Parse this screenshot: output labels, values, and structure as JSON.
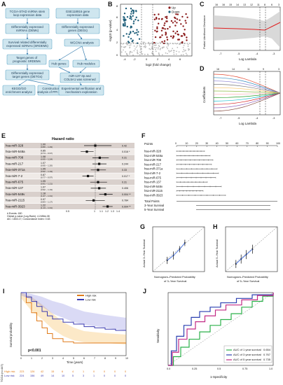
{
  "panels": {
    "A": {
      "label": "A",
      "boxes": [
        [
          "TCGA-STAD miRNA stem",
          "loop expression data"
        ],
        [
          "GSE118916 gene",
          "expression data"
        ],
        [
          "Differentially expressed",
          "miRNAs (DEMs)"
        ],
        [
          "Differentially expressed",
          "genes (DEGs)"
        ],
        [
          "Survival related differentially",
          "expressed miRNAs (SRDEMs)"
        ],
        [
          "WGCNA analysis"
        ],
        [
          "Target genes of",
          "prognostic SRDEMs"
        ],
        [
          "Hub genes"
        ],
        [
          "Hub modules"
        ],
        [
          "Differentially expressed",
          "target genes (DETGs)"
        ],
        [
          "miR-137-3p and",
          "COL5A1 was screened"
        ],
        [
          "KEGG/GO",
          "enrichment analyse"
        ],
        [
          "Construction and",
          "analysis of PPI networks"
        ],
        [
          "Experimental verification and",
          "mechanism exploration"
        ]
      ]
    },
    "B": {
      "label": "B",
      "ylabel": "-log10 (p-value)",
      "xlabel": "log2 (fold change)",
      "legend": [
        "Up",
        "Down"
      ],
      "colors": {
        "up": "#8b1a1a",
        "down": "#1f5f7a"
      }
    },
    "C": {
      "label": "C",
      "ylabel": "Partial Likelihood Deviance",
      "xlabel": "Log Lambda",
      "top_ticks": [
        "16",
        "16",
        "15",
        "14",
        "13",
        "12",
        "11",
        "8",
        "6",
        "3"
      ]
    },
    "D": {
      "label": "D",
      "ylabel": "Coefficients",
      "xlabel": "Log Lambda",
      "top_ticks": [
        "16",
        "14",
        "11",
        "9",
        "3"
      ]
    },
    "E": {
      "label": "E",
      "title": "Hazard ratio",
      "footer": [
        "# Events: 180",
        "Global p-value (Log-Rank): 4.2456e-08",
        "AIC: 1833.17; Concordance Index: 0.63"
      ],
      "axis_ticks": [
        "0.5",
        "1",
        "1.1",
        "1.2",
        "1.3",
        "1.4"
      ]
    },
    "F": {
      "label": "F",
      "points_label": "Points",
      "total_points_label": "Total Points",
      "survival_labels": [
        "3-Year Survival",
        "5-Year Survival"
      ],
      "point_ticks": [
        "0",
        "10",
        "20",
        "30",
        "40",
        "50",
        "60",
        "70",
        "80",
        "90",
        "100"
      ]
    },
    "G": {
      "label": "G",
      "ylabel": "Actual 3–Year Survival",
      "xlabel": [
        "Nomogram–Predicted Probability",
        "of 3–Year Survival"
      ]
    },
    "H": {
      "label": "H",
      "ylabel": "Actual 5–Year Survival",
      "xlabel": [
        "Nomogram–Predicted Probability",
        "of 5–Year Survival"
      ]
    },
    "I": {
      "label": "I",
      "legend": [
        "High risk",
        "Low risk"
      ],
      "pvalue": "p<0.001",
      "ylabel": "Survival probability",
      "xlabel": "Time (years)",
      "table_ylabel": "TCGA (n=447)",
      "risk_rows": {
        "High risk": [
          "223",
          "126",
          "42",
          "15",
          "6",
          "4",
          "1",
          "0",
          "0",
          "0",
          "0"
        ],
        "Low risk": [
          "224",
          "156",
          "49",
          "14",
          "10",
          "5",
          "3",
          "1",
          "0",
          "0",
          "0"
        ]
      },
      "colors": {
        "high": "#e07b1a",
        "low": "#3a3ab0"
      }
    },
    "J": {
      "label": "J",
      "ylabel": "Sensitivity",
      "xlabel": "1-Specificity",
      "legend": [
        {
          "label": "AUC of 1 year survival",
          "value": "0.654",
          "color": "#2bb04a"
        },
        {
          "label": "AUC of 3 year survival",
          "value": "0.767",
          "color": "#2a3fb0"
        },
        {
          "label": "AUC of 5 year survival",
          "value": "0.735",
          "color": "#c22b86"
        }
      ]
    }
  },
  "chart_data": [
    {
      "panel": "E",
      "type": "forest",
      "rows": [
        {
          "name": "hsa-miR-328",
          "hr": "1.00",
          "ci": "(0.80 – 1.29)",
          "p": "0.42",
          "v": 1.0,
          "lo": 0.8,
          "hi": 1.29
        },
        {
          "name": "hsa-miR-548a",
          "hr": "0.85",
          "ci": "(0.74 – 0.97)",
          "p": "0.016 *",
          "v": 0.85,
          "lo": 0.74,
          "hi": 0.97
        },
        {
          "name": "hsa-miR-708",
          "hr": "1.08",
          "ci": "(0.95 – 1.24)",
          "p": "0.31",
          "v": 1.08,
          "lo": 0.95,
          "hi": 1.24
        },
        {
          "name": "hsa-miR-217",
          "hr": "1.07",
          "ci": "(0.95 – 1.20)",
          "p": "0.244",
          "v": 1.07,
          "lo": 0.95,
          "hi": 1.2
        },
        {
          "name": "hsa-miR-371a",
          "hr": "1.05",
          "ci": "(0.92 – 1.19)",
          "p": "0.33",
          "v": 1.05,
          "lo": 0.92,
          "hi": 1.19
        },
        {
          "name": "hsa-miR-7-2",
          "hr": "0.87",
          "ci": "(0.77 – 0.97)",
          "p": "0.017 *",
          "v": 0.87,
          "lo": 0.77,
          "hi": 0.97
        },
        {
          "name": "hsa-miR-675",
          "hr": "1.05",
          "ci": "(0.91 – 1.21)",
          "p": "0.31",
          "v": 1.05,
          "lo": 0.91,
          "hi": 1.21
        },
        {
          "name": "hsa-miR-137",
          "hr": "1.07",
          "ci": "(0.92 – 1.19)",
          "p": "0.406",
          "v": 1.07,
          "lo": 0.92,
          "hi": 1.19
        },
        {
          "name": "hsa-miR-548v",
          "hr": "1.18",
          "ci": "(1.07 – 1.31)",
          "p": "0.004 **",
          "v": 1.18,
          "lo": 1.07,
          "hi": 1.31
        },
        {
          "name": "hsa-miR-2115",
          "hr": "0.97",
          "ci": "(0.83 – 1.17)",
          "p": "0.784",
          "v": 0.97,
          "lo": 0.83,
          "hi": 1.17
        },
        {
          "name": "hsa-miR-3923",
          "hr": "1.22",
          "ci": "(1.13 – 1.31)",
          "p": "0.004 **",
          "v": 1.22,
          "lo": 1.13,
          "hi": 1.31
        }
      ]
    },
    {
      "panel": "F",
      "type": "nomogram",
      "variables": [
        "hsa-miR-328",
        "hsa-miR-548a",
        "hsa-miR-708",
        "hsa-miR-217",
        "hsa-miR-371a",
        "hsa-miR-7-2",
        "hsa-miR-675",
        "hsa-miR-137",
        "hsa-miR-548v",
        "hsa-miR-2115",
        "hsa-miR-3923"
      ]
    },
    {
      "panel": "I",
      "type": "line",
      "x_ticks": [
        0,
        1,
        2,
        3,
        4,
        5,
        6,
        7,
        8,
        9,
        10
      ],
      "series": [
        {
          "name": "High risk",
          "x": [
            0,
            0.5,
            1,
            1.5,
            2,
            2.5,
            3,
            4,
            5,
            6,
            7,
            10
          ],
          "y": [
            1,
            0.84,
            0.68,
            0.55,
            0.44,
            0.35,
            0.27,
            0.22,
            0.2,
            0.2,
            0.2,
            0.2
          ]
        },
        {
          "name": "Low risk",
          "x": [
            0,
            0.5,
            1,
            1.5,
            2,
            2.5,
            3,
            4,
            5,
            6,
            7,
            8,
            9,
            10
          ],
          "y": [
            1,
            0.93,
            0.86,
            0.78,
            0.7,
            0.63,
            0.58,
            0.53,
            0.5,
            0.46,
            0.44,
            0.42,
            0.4,
            0.4
          ]
        }
      ]
    },
    {
      "panel": "J",
      "type": "line",
      "series": [
        {
          "name": "AUC of 1 year survival",
          "x": [
            0,
            0.05,
            0.12,
            0.2,
            0.3,
            0.4,
            0.5,
            0.6,
            0.7,
            0.8,
            0.9,
            1
          ],
          "y": [
            0,
            0.12,
            0.25,
            0.36,
            0.46,
            0.55,
            0.63,
            0.71,
            0.8,
            0.88,
            0.95,
            1
          ]
        },
        {
          "name": "AUC of 3 year survival",
          "x": [
            0,
            0.03,
            0.08,
            0.15,
            0.22,
            0.3,
            0.4,
            0.5,
            0.65,
            0.8,
            1
          ],
          "y": [
            0,
            0.2,
            0.4,
            0.55,
            0.66,
            0.74,
            0.8,
            0.86,
            0.92,
            0.97,
            1
          ]
        },
        {
          "name": "AUC of 5 year survival",
          "x": [
            0,
            0.04,
            0.1,
            0.18,
            0.26,
            0.35,
            0.45,
            0.55,
            0.7,
            0.85,
            1
          ],
          "y": [
            0,
            0.18,
            0.36,
            0.5,
            0.6,
            0.68,
            0.76,
            0.83,
            0.9,
            0.96,
            1
          ]
        }
      ]
    }
  ]
}
